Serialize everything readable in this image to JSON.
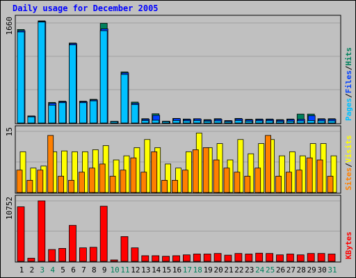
{
  "title": "Daily usage for December 2005",
  "colors": {
    "pages": "#00c0ff",
    "files": "#0040ff",
    "hits": "#00805c",
    "visits": "#ffff00",
    "sites": "#ff8000",
    "kbytes": "#ff0000",
    "weekend_day": "#00805c",
    "weekday_day": "#000000"
  },
  "chart_data": [
    {
      "type": "bar",
      "panel": "hits-files-pages",
      "ylabel_max": "1660",
      "legend": [
        "Pages",
        "/",
        "Files",
        "/",
        "Hits"
      ],
      "ylim": [
        0,
        1660
      ],
      "categories": [
        "1",
        "2",
        "3",
        "4",
        "5",
        "6",
        "7",
        "8",
        "9",
        "10",
        "11",
        "12",
        "13",
        "14",
        "15",
        "16",
        "17",
        "18",
        "19",
        "20",
        "21",
        "22",
        "23",
        "24",
        "25",
        "26",
        "27",
        "28",
        "29",
        "30",
        "31"
      ],
      "series": [
        {
          "name": "Hits",
          "values": [
            1520,
            115,
            1660,
            335,
            355,
            1300,
            355,
            385,
            1620,
            28,
            830,
            340,
            70,
            150,
            30,
            75,
            65,
            70,
            55,
            70,
            40,
            75,
            60,
            65,
            65,
            55,
            65,
            145,
            145,
            70,
            70
          ]
        },
        {
          "name": "Files",
          "values": [
            1500,
            110,
            1650,
            320,
            345,
            1290,
            345,
            375,
            1530,
            25,
            815,
            320,
            60,
            125,
            25,
            70,
            55,
            65,
            45,
            60,
            35,
            65,
            50,
            55,
            55,
            45,
            55,
            60,
            120,
            60,
            60
          ]
        },
        {
          "name": "Pages",
          "values": [
            1480,
            100,
            1640,
            290,
            330,
            1270,
            330,
            360,
            1500,
            20,
            790,
            300,
            40,
            45,
            15,
            40,
            35,
            40,
            30,
            35,
            20,
            40,
            30,
            35,
            35,
            25,
            30,
            35,
            40,
            35,
            35
          ]
        }
      ]
    },
    {
      "type": "bar",
      "panel": "visits-sites",
      "ylabel_max": "15",
      "legend": [
        "Sites",
        "/",
        "Visits"
      ],
      "ylim": [
        0,
        15
      ],
      "categories": [
        "1",
        "2",
        "3",
        "4",
        "5",
        "6",
        "7",
        "8",
        "9",
        "10",
        "11",
        "12",
        "13",
        "14",
        "15",
        "16",
        "17",
        "18",
        "19",
        "20",
        "21",
        "22",
        "23",
        "24",
        "25",
        "26",
        "27",
        "28",
        "29",
        "30",
        "31"
      ],
      "series": [
        {
          "name": "Visits",
          "values": [
            10,
            6,
            6.5,
            10,
            10.2,
            10,
            10,
            10.5,
            11.5,
            8,
            9,
            11,
            13,
            11,
            7,
            6,
            10,
            14.6,
            11,
            12,
            8,
            13,
            9.5,
            12,
            13,
            9,
            10,
            9,
            12,
            12,
            9
          ]
        },
        {
          "name": "Sites",
          "values": [
            5.5,
            3,
            5.5,
            14,
            4,
            3,
            5,
            6,
            7,
            4,
            5.5,
            8.5,
            5,
            10,
            3,
            3,
            5.5,
            10.5,
            11,
            8,
            6,
            5,
            4,
            6,
            14,
            4,
            5,
            5.5,
            8.5,
            8,
            4
          ]
        }
      ]
    },
    {
      "type": "bar",
      "panel": "kbytes",
      "ylabel_max": "10752",
      "legend": [
        "KBytes"
      ],
      "ylim": [
        0,
        10752
      ],
      "categories": [
        "1",
        "2",
        "3",
        "4",
        "5",
        "6",
        "7",
        "8",
        "9",
        "10",
        "11",
        "12",
        "13",
        "14",
        "15",
        "16",
        "17",
        "18",
        "19",
        "20",
        "21",
        "22",
        "23",
        "24",
        "25",
        "26",
        "27",
        "28",
        "29",
        "30",
        "31"
      ],
      "series": [
        {
          "name": "KBytes",
          "values": [
            9700,
            550,
            10752,
            2100,
            2300,
            6400,
            2400,
            2500,
            9800,
            150,
            4400,
            2400,
            1000,
            1000,
            900,
            1000,
            1150,
            1300,
            1300,
            1400,
            1100,
            1400,
            1300,
            1450,
            1400,
            1150,
            1300,
            1150,
            1400,
            1400,
            1300
          ]
        }
      ]
    }
  ],
  "x_axis_labels": [
    "1",
    "2",
    "3",
    "4",
    "5",
    "6",
    "7",
    "8",
    "9",
    "10",
    "11",
    "12",
    "13",
    "14",
    "15",
    "16",
    "17",
    "18",
    "19",
    "20",
    "21",
    "22",
    "23",
    "24",
    "25",
    "26",
    "27",
    "28",
    "29",
    "30",
    "31"
  ],
  "weekend_days": [
    3,
    4,
    10,
    11,
    17,
    18,
    24,
    25,
    31
  ]
}
